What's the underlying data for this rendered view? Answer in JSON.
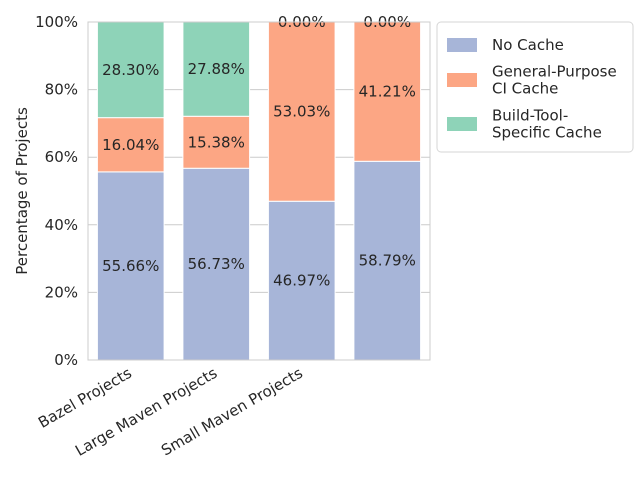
{
  "chart_data": {
    "type": "bar",
    "stacked": true,
    "unit": "%",
    "categories": [
      "Bazel Projects",
      "Large Maven Projects",
      "Small Maven Projects",
      ""
    ],
    "ylabel": "Percentage of Projects",
    "ylim": [
      0,
      100
    ],
    "yticks": [
      "0%",
      "20%",
      "40%",
      "60%",
      "80%",
      "100%"
    ],
    "grid": true,
    "legend_position": "upper-right-outside",
    "series": [
      {
        "name": "No Cache",
        "values": [
          55.66,
          56.73,
          46.97,
          58.79
        ],
        "labels": [
          "55.66%",
          "56.73%",
          "46.97%",
          "58.79%"
        ],
        "color": "#a7b5d8"
      },
      {
        "name": "General-Purpose CI Cache",
        "legend_lines": [
          "General-Purpose",
          "CI Cache"
        ],
        "values": [
          16.04,
          15.38,
          53.03,
          41.21
        ],
        "labels": [
          "16.04%",
          "15.38%",
          "53.03%",
          "41.21%"
        ],
        "color": "#fca684"
      },
      {
        "name": "Build-Tool-Specific Cache",
        "legend_lines": [
          "Build-Tool-",
          "Specific Cache"
        ],
        "values": [
          28.3,
          27.88,
          0.0,
          0.0
        ],
        "labels": [
          "28.30%",
          "27.88%",
          "0.00%",
          "0.00%"
        ],
        "color": "#8ed3b8"
      }
    ]
  }
}
